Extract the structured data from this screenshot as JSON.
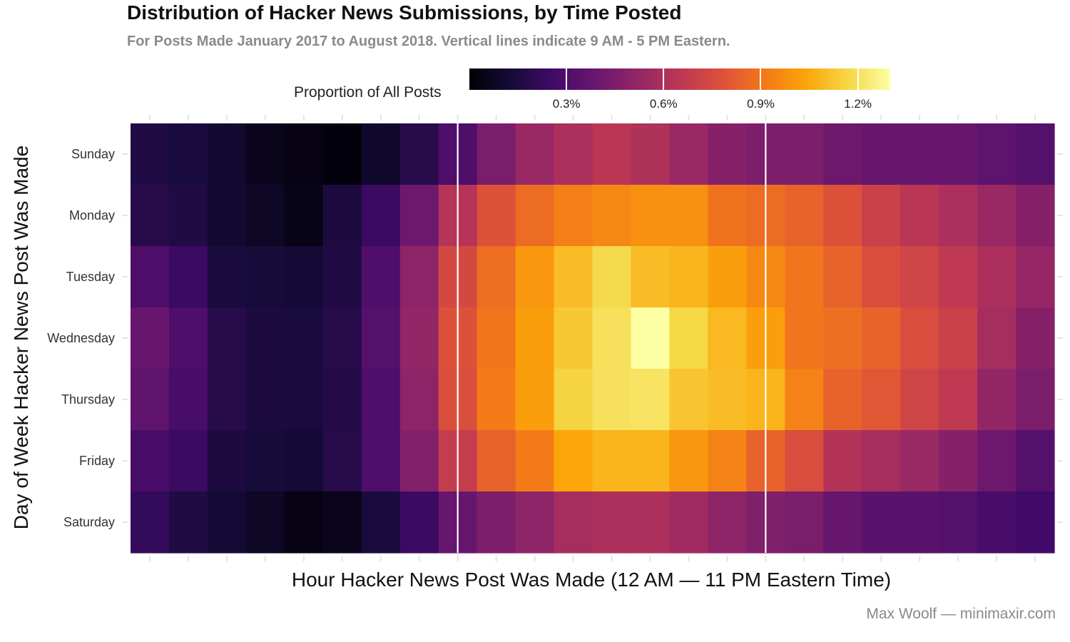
{
  "chart_data": {
    "type": "heatmap",
    "title": "Distribution of Hacker News Submissions, by Time Posted",
    "subtitle": "For Posts Made January 2017 to August 2018. Vertical lines indicate 9 AM - 5 PM Eastern.",
    "xlabel": "Hour Hacker News Post Was Made (12 AM — 11 PM Eastern Time)",
    "ylabel": "Day of Week Hacker News Post Was Made",
    "caption": "Max Woolf — minimaxir.com",
    "x_hours": [
      0,
      1,
      2,
      3,
      4,
      5,
      6,
      7,
      8,
      9,
      10,
      11,
      12,
      13,
      14,
      15,
      16,
      17,
      18,
      19,
      20,
      21,
      22,
      23
    ],
    "y_categories": [
      "Sunday",
      "Monday",
      "Tuesday",
      "Wednesday",
      "Thursday",
      "Friday",
      "Saturday"
    ],
    "vertical_lines_at_hours": [
      9,
      17
    ],
    "legend": {
      "title": "Proportion of All Posts",
      "min": 0.0,
      "max": 1.3,
      "ticks": [
        0.3,
        0.6,
        0.9,
        1.2
      ],
      "tick_labels": [
        "0.3%",
        "0.6%",
        "0.9%",
        "1.2%"
      ],
      "colorscale": "inferno"
    },
    "values_percent": [
      [
        0.16,
        0.14,
        0.11,
        0.06,
        0.04,
        0.02,
        0.1,
        0.18,
        0.3,
        0.44,
        0.54,
        0.6,
        0.64,
        0.61,
        0.54,
        0.48,
        0.45,
        0.45,
        0.4,
        0.38,
        0.38,
        0.38,
        0.35,
        0.32
      ],
      [
        0.18,
        0.16,
        0.11,
        0.08,
        0.05,
        0.15,
        0.24,
        0.4,
        0.63,
        0.78,
        0.87,
        0.93,
        0.96,
        0.98,
        0.98,
        0.89,
        0.87,
        0.84,
        0.78,
        0.7,
        0.64,
        0.6,
        0.54,
        0.48
      ],
      [
        0.3,
        0.24,
        0.14,
        0.13,
        0.12,
        0.16,
        0.3,
        0.5,
        0.74,
        0.88,
        1.0,
        1.1,
        1.18,
        1.1,
        1.08,
        1.02,
        0.96,
        0.9,
        0.84,
        0.76,
        0.72,
        0.66,
        0.6,
        0.53
      ],
      [
        0.38,
        0.3,
        0.18,
        0.15,
        0.14,
        0.18,
        0.32,
        0.52,
        0.78,
        0.9,
        1.02,
        1.13,
        1.2,
        1.3,
        1.17,
        1.09,
        1.02,
        0.9,
        0.88,
        0.84,
        0.76,
        0.7,
        0.58,
        0.48
      ],
      [
        0.35,
        0.28,
        0.18,
        0.15,
        0.14,
        0.17,
        0.3,
        0.5,
        0.77,
        0.92,
        1.02,
        1.16,
        1.2,
        1.21,
        1.12,
        1.1,
        1.08,
        0.94,
        0.84,
        0.8,
        0.72,
        0.66,
        0.52,
        0.44
      ],
      [
        0.28,
        0.24,
        0.15,
        0.13,
        0.12,
        0.18,
        0.3,
        0.47,
        0.68,
        0.84,
        0.92,
        1.04,
        1.08,
        1.08,
        1.0,
        0.94,
        0.84,
        0.76,
        0.62,
        0.58,
        0.54,
        0.48,
        0.4,
        0.32
      ],
      [
        0.22,
        0.16,
        0.12,
        0.08,
        0.04,
        0.06,
        0.14,
        0.24,
        0.38,
        0.45,
        0.5,
        0.58,
        0.6,
        0.6,
        0.56,
        0.5,
        0.46,
        0.44,
        0.38,
        0.34,
        0.34,
        0.32,
        0.28,
        0.26
      ]
    ]
  }
}
